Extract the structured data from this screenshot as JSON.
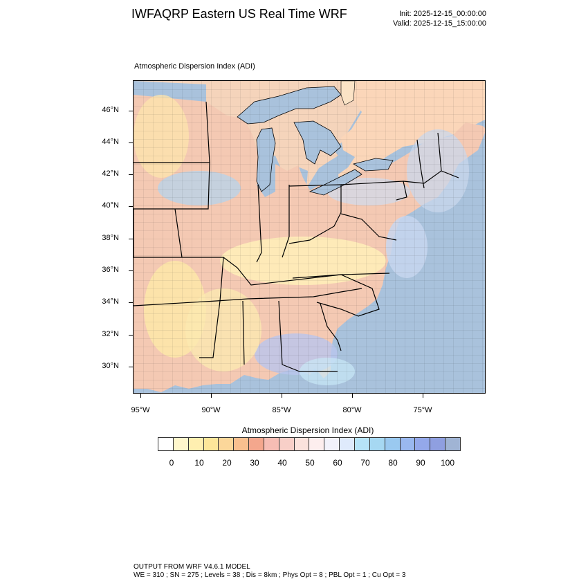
{
  "header": {
    "title": "IWFAQRP Eastern US Real Time WRF",
    "init": "Init: 2025-12-15_00:00:00",
    "valid": "Valid: 2025-12-15_15:00:00"
  },
  "plot": {
    "subtitle": "Atmospheric Dispersion Index   (ADI)",
    "lat_labels": [
      "46°N",
      "44°N",
      "42°N",
      "40°N",
      "38°N",
      "36°N",
      "34°N",
      "32°N",
      "30°N"
    ],
    "lon_labels": [
      "95°W",
      "90°W",
      "85°W",
      "80°W",
      "75°W"
    ],
    "colors": {
      "water": "#a9c2dc",
      "land_base": "#f6d3b8",
      "state_lines": "#000000",
      "county_lines": "#333333"
    }
  },
  "legend": {
    "title": "Atmospheric Dispersion Index  (ADI)",
    "labels": [
      "0",
      "10",
      "20",
      "30",
      "40",
      "50",
      "60",
      "70",
      "80",
      "90",
      "100"
    ],
    "colors": [
      "#ffffff",
      "#fff7cc",
      "#ffefb0",
      "#fde69a",
      "#fcd79a",
      "#f9c08f",
      "#f4a78d",
      "#f6bdb4",
      "#f8cfc8",
      "#fbe2dc",
      "#fdeeee",
      "#f2f2fb",
      "#dfeafc",
      "#b6e3f8",
      "#a6d8f2",
      "#9ac9f0",
      "#9ab8ef",
      "#94a8ea",
      "#8f9fe0",
      "#a0b4d4"
    ]
  },
  "footer": {
    "line1": "OUTPUT FROM WRF V4.6.1 MODEL",
    "line2": "WE = 310 ; SN = 275 ; Levels = 38 ; Dis = 8km ; Phys Opt = 8 ; PBL Opt = 1 ; Cu Opt = 3"
  }
}
